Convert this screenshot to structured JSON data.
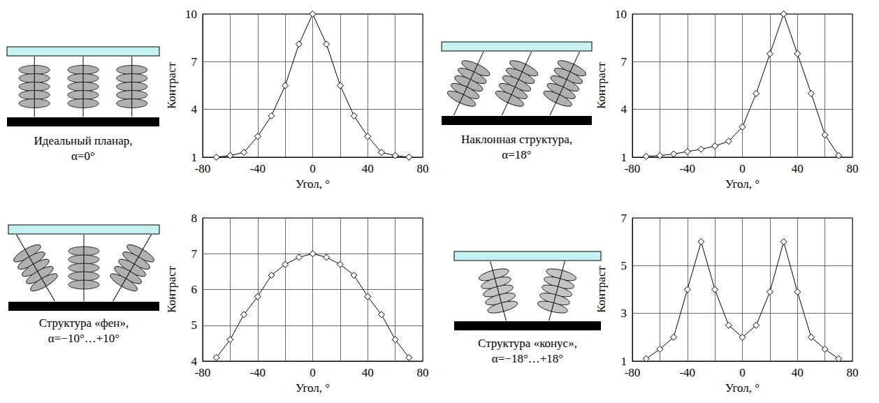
{
  "chart_data": [
    {
      "type": "line",
      "x_label": "Угол, °",
      "y_label": "Контраст",
      "x": [
        -70,
        -60,
        -50,
        -40,
        -30,
        -20,
        -10,
        0,
        10,
        20,
        30,
        40,
        50,
        60,
        70
      ],
      "values": [
        1.0,
        1.1,
        1.3,
        2.3,
        3.6,
        5.5,
        8.1,
        10,
        8.1,
        5.5,
        3.6,
        2.3,
        1.3,
        1.1,
        1.0
      ],
      "xlim": [
        -80,
        80
      ],
      "xticks": [
        -80,
        -40,
        0,
        40,
        80
      ],
      "ylim": [
        1,
        10
      ],
      "yticks": [
        1,
        4,
        7,
        10
      ],
      "grid": true,
      "marker": "diamond",
      "color": "#000000"
    },
    {
      "type": "line",
      "x_label": "Угол, °",
      "y_label": "Контраст",
      "x": [
        -70,
        -60,
        -50,
        -40,
        -30,
        -20,
        -10,
        0,
        10,
        20,
        30,
        40,
        50,
        60,
        70
      ],
      "values": [
        1.05,
        1.1,
        1.2,
        1.35,
        1.5,
        1.7,
        2.0,
        2.9,
        5.0,
        7.5,
        10,
        7.5,
        5.0,
        2.4,
        1.1
      ],
      "xlim": [
        -80,
        80
      ],
      "xticks": [
        -80,
        -40,
        0,
        40,
        80
      ],
      "ylim": [
        1,
        10
      ],
      "yticks": [
        1,
        4,
        7,
        10
      ],
      "grid": true,
      "marker": "diamond",
      "color": "#000000"
    },
    {
      "type": "line",
      "x_label": "Угол, °",
      "y_label": "Контраст",
      "x": [
        -70,
        -60,
        -50,
        -40,
        -30,
        -20,
        -10,
        0,
        10,
        20,
        30,
        40,
        50,
        60,
        70
      ],
      "values": [
        4.1,
        4.6,
        5.3,
        5.8,
        6.4,
        6.7,
        6.9,
        7.0,
        6.9,
        6.7,
        6.4,
        5.8,
        5.3,
        4.6,
        4.1
      ],
      "xlim": [
        -80,
        80
      ],
      "xticks": [
        -80,
        -40,
        0,
        40,
        80
      ],
      "ylim": [
        4,
        8
      ],
      "yticks": [
        4,
        5,
        6,
        7,
        8
      ],
      "grid": true,
      "marker": "diamond",
      "color": "#000000"
    },
    {
      "type": "line",
      "x_label": "Угол, °",
      "y_label": "Контраст",
      "x": [
        -70,
        -60,
        -50,
        -40,
        -30,
        -20,
        -10,
        0,
        10,
        20,
        30,
        40,
        50,
        60,
        70
      ],
      "values": [
        1.1,
        1.5,
        2.0,
        4.0,
        6.0,
        4.0,
        2.5,
        2.0,
        2.5,
        3.9,
        6.0,
        3.9,
        2.0,
        1.5,
        1.1
      ],
      "xlim": [
        -80,
        80
      ],
      "xticks": [
        -80,
        -40,
        0,
        40,
        80
      ],
      "ylim": [
        1,
        7
      ],
      "yticks": [
        1,
        3,
        5,
        7
      ],
      "grid": true,
      "marker": "diamond",
      "color": "#000000"
    }
  ],
  "diagrams": [
    {
      "caption": [
        "Идеальный планар,",
        "α=0°"
      ],
      "column_tilts": [
        0,
        0,
        0
      ]
    },
    {
      "caption": [
        "Наклонная структура,",
        "α=18°"
      ],
      "column_tilts": [
        25,
        25,
        25
      ]
    },
    {
      "caption": [
        "Структура «фен»,",
        "α=−10°…+10°"
      ],
      "column_tilts": [
        -30,
        0,
        30
      ]
    },
    {
      "caption": [
        "Структура «конус»,",
        "α=−18°…+18°"
      ],
      "column_tilts": [
        -15,
        15
      ]
    }
  ]
}
